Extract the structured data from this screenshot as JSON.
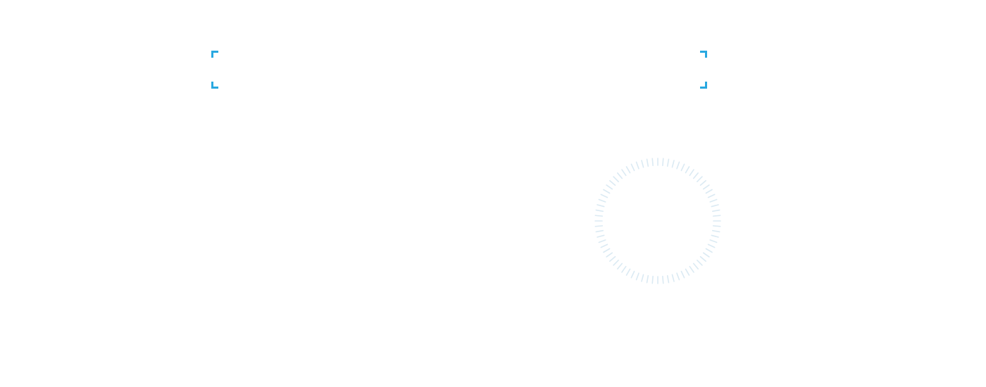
{
  "colors": {
    "accent": "#29a8e0",
    "spinner_tick": "#dbeaf3",
    "background": "#ffffff"
  },
  "icons": {
    "focus_frame": "corner-brackets-icon",
    "loading": "loading-spinner-icon"
  }
}
